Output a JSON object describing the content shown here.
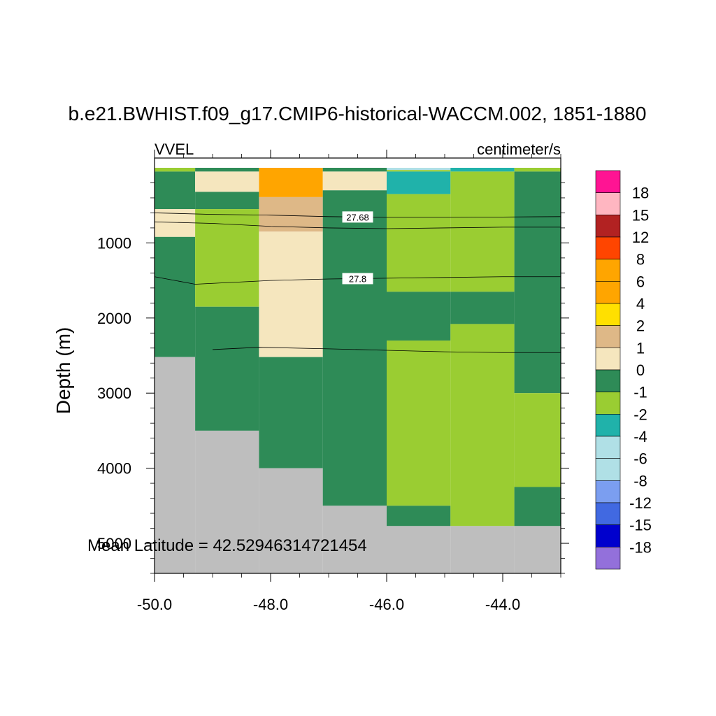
{
  "chart_data": {
    "type": "heatmap",
    "title": "b.e21.BWHIST.f09_g17.CMIP6-historical-WACCM.002, 1851-1880",
    "left_string": "VVEL",
    "right_string": "centimeter/s",
    "ylabel": "Depth (m)",
    "xlabel": "",
    "annotation": "Mean Latitude = 42.52946314721454",
    "xlim": [
      -50.0,
      -43.0
    ],
    "ylim": [
      5400,
      0
    ],
    "x_ticks": [
      "-50.0",
      "-48.0",
      "-46.0",
      "-44.0"
    ],
    "x_tick_values": [
      -50.0,
      -48.0,
      -46.0,
      -44.0
    ],
    "y_ticks": [
      "1000",
      "2000",
      "3000",
      "4000",
      "5000"
    ],
    "y_tick_values": [
      1000,
      2000,
      3000,
      4000,
      5000
    ],
    "colorbar": {
      "labels": [
        "18",
        "15",
        "12",
        "8",
        "6",
        "4",
        "2",
        "1",
        "0",
        "-1",
        "-2",
        "-4",
        "-6",
        "-8",
        "-12",
        "-15",
        "-18"
      ],
      "colors": [
        "#FF1493",
        "#FFB6C1",
        "#B22222",
        "#FF4500",
        "#FFA500",
        "#FFA500",
        "#FFE000",
        "#DEB887",
        "#F5E6BE",
        "#2E8B57",
        "#9ACD32",
        "#20B2AA",
        "#B0E0E6",
        "#B0E0E6",
        "#7B9EF0",
        "#4169E1",
        "#0000CD",
        "#9370DB"
      ]
    },
    "land_color": "#BEBEBE",
    "columns": [
      {
        "x0": -50.0,
        "x1": -49.3,
        "cells": [
          [
            0,
            50,
            "-1"
          ],
          [
            50,
            550,
            "0"
          ],
          [
            550,
            920,
            "1"
          ],
          [
            920,
            2520,
            "0"
          ]
        ],
        "bottom": 2520
      },
      {
        "x0": -49.3,
        "x1": -48.2,
        "cells": [
          [
            0,
            50,
            "0"
          ],
          [
            50,
            320,
            "1"
          ],
          [
            320,
            550,
            "0"
          ],
          [
            550,
            1850,
            "-1"
          ],
          [
            1850,
            3500,
            "0"
          ]
        ],
        "bottom": 3500
      },
      {
        "x0": -48.2,
        "x1": -47.1,
        "cells": [
          [
            0,
            390,
            "6"
          ],
          [
            390,
            850,
            "2"
          ],
          [
            850,
            2520,
            "1"
          ],
          [
            2520,
            4000,
            "0"
          ]
        ],
        "bottom": 4000
      },
      {
        "x0": -47.1,
        "x1": -46.0,
        "cells": [
          [
            0,
            50,
            "0"
          ],
          [
            50,
            300,
            "1"
          ],
          [
            300,
            4500,
            "0"
          ]
        ],
        "bottom": 4500
      },
      {
        "x0": -46.0,
        "x1": -44.9,
        "cells": [
          [
            0,
            30,
            "-4"
          ],
          [
            30,
            50,
            "-1"
          ],
          [
            50,
            350,
            "-2"
          ],
          [
            350,
            1650,
            "-1"
          ],
          [
            1650,
            2300,
            "0"
          ],
          [
            2300,
            4500,
            "-1"
          ],
          [
            4500,
            4770,
            "0"
          ]
        ],
        "bottom": 4770
      },
      {
        "x0": -44.9,
        "x1": -43.8,
        "cells": [
          [
            0,
            50,
            "-2"
          ],
          [
            50,
            1650,
            "-1"
          ],
          [
            1650,
            2080,
            "0"
          ],
          [
            2080,
            4770,
            "-1"
          ]
        ],
        "bottom": 4770
      },
      {
        "x0": -43.8,
        "x1": -43.0,
        "cells": [
          [
            0,
            50,
            "-1"
          ],
          [
            50,
            3000,
            "0"
          ],
          [
            3000,
            4250,
            "-1"
          ],
          [
            4250,
            4770,
            "0"
          ]
        ],
        "bottom": 4770
      }
    ],
    "contours": [
      {
        "label": "27.68",
        "label_x": -46.5,
        "points": [
          [
            -50.0,
            600
          ],
          [
            -49.0,
            620
          ],
          [
            -48.0,
            630
          ],
          [
            -47.0,
            650
          ],
          [
            -46.0,
            660
          ],
          [
            -45.0,
            660
          ],
          [
            -44.0,
            655
          ],
          [
            -43.0,
            650
          ]
        ]
      },
      {
        "label": "",
        "points": [
          [
            -50.0,
            720
          ],
          [
            -49.0,
            740
          ],
          [
            -48.0,
            780
          ],
          [
            -47.0,
            800
          ],
          [
            -46.0,
            810
          ],
          [
            -45.0,
            800
          ],
          [
            -44.0,
            790
          ],
          [
            -43.0,
            790
          ]
        ]
      },
      {
        "label": "27.8",
        "label_x": -46.5,
        "points": [
          [
            -50.0,
            1450
          ],
          [
            -49.3,
            1550
          ],
          [
            -48.0,
            1500
          ],
          [
            -47.0,
            1480
          ],
          [
            -46.0,
            1470
          ],
          [
            -45.0,
            1460
          ],
          [
            -44.0,
            1450
          ],
          [
            -43.0,
            1450
          ]
        ]
      },
      {
        "label": "",
        "points": [
          [
            -49.0,
            2420
          ],
          [
            -48.2,
            2390
          ],
          [
            -47.0,
            2410
          ],
          [
            -46.0,
            2430
          ],
          [
            -45.0,
            2450
          ],
          [
            -44.0,
            2460
          ],
          [
            -43.0,
            2460
          ]
        ]
      }
    ]
  }
}
